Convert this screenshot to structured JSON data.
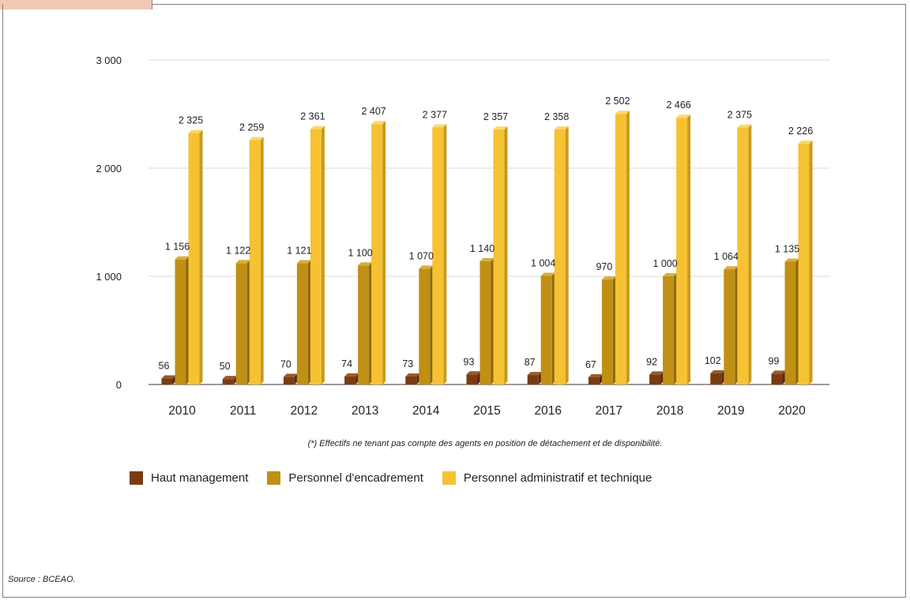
{
  "chart_data": {
    "type": "bar",
    "categories": [
      "2010",
      "2011",
      "2012",
      "2013",
      "2014",
      "2015",
      "2016",
      "2017",
      "2018",
      "2019",
      "2020"
    ],
    "series": [
      {
        "name": "Haut management",
        "values": [
          56,
          50,
          70,
          74,
          73,
          93,
          87,
          67,
          92,
          102,
          99
        ],
        "labels": [
          "56",
          "50",
          "70",
          "74",
          "73",
          "93",
          "87",
          "67",
          "92",
          "102",
          "99"
        ],
        "color": "#7a3b12",
        "side": "#5a2a0c",
        "top": "#9a5a2c"
      },
      {
        "name": "Personnel d'encadrement",
        "values": [
          1156,
          1122,
          1121,
          1100,
          1070,
          1140,
          1004,
          970,
          1000,
          1064,
          1135
        ],
        "labels": [
          "1 156",
          "1 122",
          "1 121",
          "1 100",
          "1 070",
          "1 140",
          "1 004",
          "970",
          "1 000",
          "1 064",
          "1 135"
        ],
        "color": "#c09015",
        "side": "#8c680e",
        "top": "#d9ad3e"
      },
      {
        "name": "Personnel administratif et technique",
        "values": [
          2325,
          2259,
          2361,
          2407,
          2377,
          2357,
          2358,
          2502,
          2466,
          2375,
          2226
        ],
        "labels": [
          "2 325",
          "2 259",
          "2 361",
          "2 407",
          "2 377",
          "2 357",
          "2 358",
          "2 502",
          "2 466",
          "2 375",
          "2 226"
        ],
        "color": "#f6c233",
        "side": "#c89a1c",
        "top": "#fbd970"
      }
    ],
    "ylim": [
      0,
      3000
    ],
    "yticks": [
      0,
      1000,
      2000,
      3000
    ],
    "ytick_labels": [
      "0",
      "1 000",
      "2 000",
      "3 000"
    ],
    "grid": true,
    "legend_position": "bottom"
  },
  "footnote": "(*) Effectifs ne tenant pas compte des agents en position de détachement et de disponibilité.",
  "source": "Source :  BCEAO."
}
